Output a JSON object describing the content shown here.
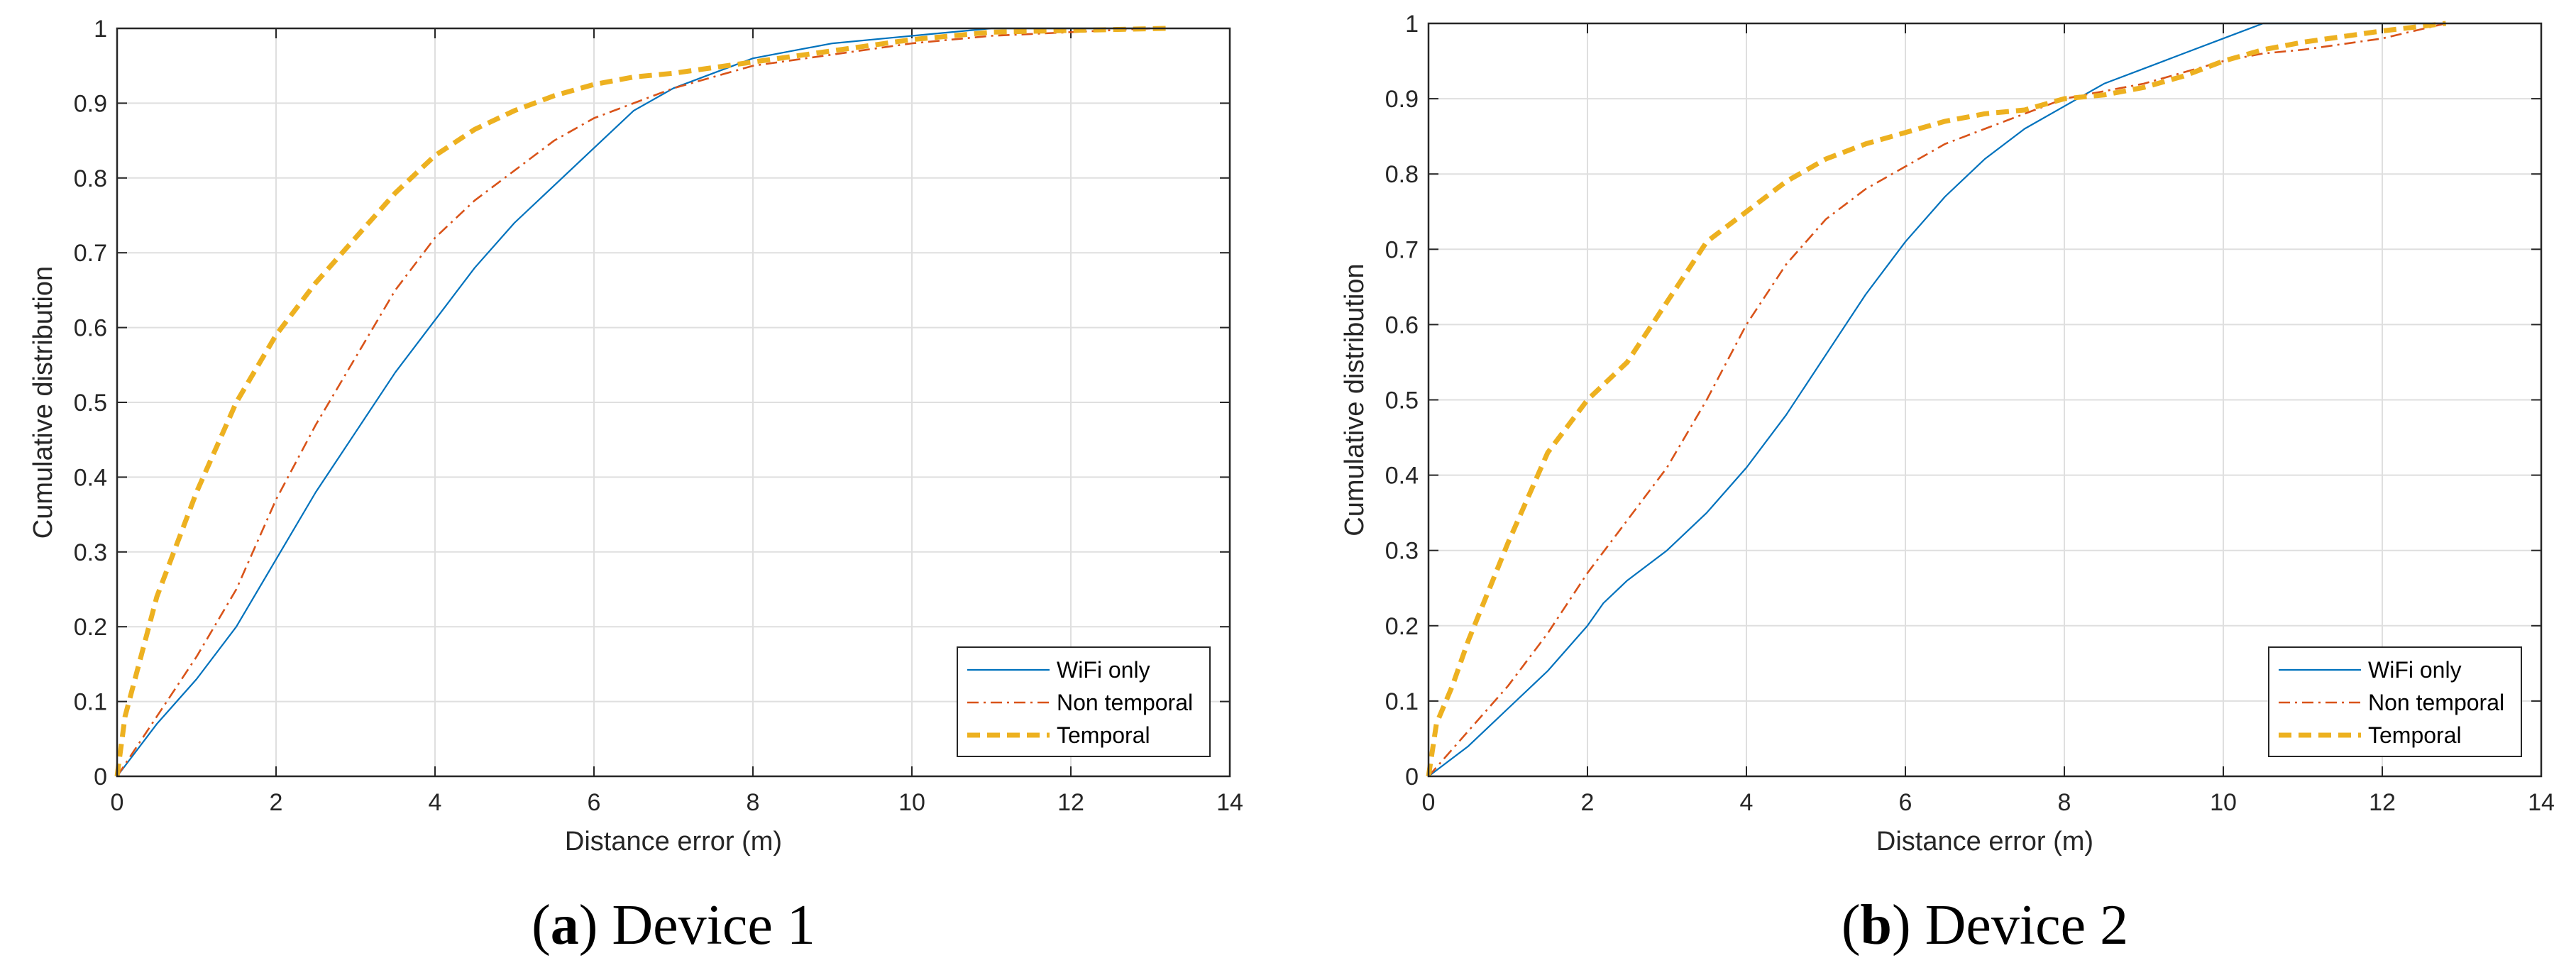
{
  "chart_data": [
    {
      "type": "line",
      "panel_letter": "a",
      "caption_text": " Device 1",
      "xlabel": "Distance error (m)",
      "ylabel": "Cumulative distribution",
      "xlim": [
        0,
        14
      ],
      "ylim": [
        0,
        1
      ],
      "x_ticks": [
        "0",
        "2",
        "4",
        "6",
        "8",
        "10",
        "12",
        "14"
      ],
      "y_ticks": [
        "0",
        "0.1",
        "0.2",
        "0.3",
        "0.4",
        "0.5",
        "0.6",
        "0.7",
        "0.8",
        "0.9",
        "1"
      ],
      "grid": true,
      "legend_position": "bottom-right",
      "series": [
        {
          "name": "WiFi only",
          "color": "#0072BD",
          "style": "solid",
          "points": [
            [
              0,
              0
            ],
            [
              0.5,
              0.07
            ],
            [
              1,
              0.13
            ],
            [
              1.5,
              0.2
            ],
            [
              2,
              0.29
            ],
            [
              2.5,
              0.38
            ],
            [
              3,
              0.46
            ],
            [
              3.5,
              0.54
            ],
            [
              4,
              0.61
            ],
            [
              4.5,
              0.68
            ],
            [
              5,
              0.74
            ],
            [
              5.5,
              0.79
            ],
            [
              6,
              0.84
            ],
            [
              6.5,
              0.89
            ],
            [
              7,
              0.92
            ],
            [
              7.5,
              0.94
            ],
            [
              8,
              0.96
            ],
            [
              8.5,
              0.97
            ],
            [
              9,
              0.98
            ],
            [
              10,
              0.99
            ],
            [
              11,
              1.0
            ],
            [
              13,
              1.0
            ]
          ]
        },
        {
          "name": "Non temporal",
          "color": "#D95319",
          "style": "dashdot",
          "points": [
            [
              0,
              0
            ],
            [
              0.5,
              0.08
            ],
            [
              1,
              0.16
            ],
            [
              1.5,
              0.25
            ],
            [
              2,
              0.37
            ],
            [
              2.5,
              0.47
            ],
            [
              3,
              0.56
            ],
            [
              3.5,
              0.65
            ],
            [
              4,
              0.72
            ],
            [
              4.5,
              0.77
            ],
            [
              5,
              0.81
            ],
            [
              5.5,
              0.85
            ],
            [
              6,
              0.88
            ],
            [
              6.5,
              0.9
            ],
            [
              7,
              0.92
            ],
            [
              7.5,
              0.935
            ],
            [
              8,
              0.95
            ],
            [
              9,
              0.965
            ],
            [
              10,
              0.98
            ],
            [
              11,
              0.99
            ],
            [
              12,
              0.995
            ],
            [
              13,
              1.0
            ]
          ]
        },
        {
          "name": "Temporal",
          "color": "#EDB120",
          "style": "dashed",
          "points": [
            [
              0,
              0
            ],
            [
              0.1,
              0.08
            ],
            [
              0.3,
              0.16
            ],
            [
              0.5,
              0.24
            ],
            [
              1,
              0.38
            ],
            [
              1.5,
              0.5
            ],
            [
              2,
              0.59
            ],
            [
              2.5,
              0.66
            ],
            [
              3,
              0.72
            ],
            [
              3.5,
              0.78
            ],
            [
              4,
              0.83
            ],
            [
              4.5,
              0.865
            ],
            [
              5,
              0.89
            ],
            [
              5.5,
              0.91
            ],
            [
              6,
              0.925
            ],
            [
              6.5,
              0.935
            ],
            [
              7,
              0.94
            ],
            [
              8,
              0.955
            ],
            [
              9,
              0.97
            ],
            [
              10,
              0.985
            ],
            [
              11,
              0.995
            ],
            [
              13.2,
              1.0
            ]
          ]
        }
      ]
    },
    {
      "type": "line",
      "panel_letter": "b",
      "caption_text": " Device 2",
      "xlabel": "Distance error (m)",
      "ylabel": "Cumulative distribution",
      "xlim": [
        0,
        14
      ],
      "ylim": [
        0,
        1
      ],
      "x_ticks": [
        "0",
        "2",
        "4",
        "6",
        "8",
        "10",
        "12",
        "14"
      ],
      "y_ticks": [
        "0",
        "0.1",
        "0.2",
        "0.3",
        "0.4",
        "0.5",
        "0.6",
        "0.7",
        "0.8",
        "0.9",
        "1"
      ],
      "grid": true,
      "legend_position": "bottom-right",
      "series": [
        {
          "name": "WiFi only",
          "color": "#0072BD",
          "style": "solid",
          "points": [
            [
              0,
              0
            ],
            [
              0.5,
              0.04
            ],
            [
              1,
              0.09
            ],
            [
              1.5,
              0.14
            ],
            [
              2,
              0.2
            ],
            [
              2.2,
              0.23
            ],
            [
              2.5,
              0.26
            ],
            [
              3,
              0.3
            ],
            [
              3.5,
              0.35
            ],
            [
              4,
              0.41
            ],
            [
              4.5,
              0.48
            ],
            [
              5,
              0.56
            ],
            [
              5.5,
              0.64
            ],
            [
              6,
              0.71
            ],
            [
              6.5,
              0.77
            ],
            [
              7,
              0.82
            ],
            [
              7.5,
              0.86
            ],
            [
              8,
              0.89
            ],
            [
              8.5,
              0.92
            ],
            [
              9,
              0.94
            ],
            [
              9.5,
              0.96
            ],
            [
              10,
              0.98
            ],
            [
              10.5,
              1.0
            ],
            [
              12.8,
              1.0
            ]
          ]
        },
        {
          "name": "Non temporal",
          "color": "#D95319",
          "style": "dashdot",
          "points": [
            [
              0,
              0
            ],
            [
              0.5,
              0.06
            ],
            [
              1,
              0.12
            ],
            [
              1.5,
              0.19
            ],
            [
              2,
              0.27
            ],
            [
              2.5,
              0.34
            ],
            [
              3,
              0.41
            ],
            [
              3.5,
              0.5
            ],
            [
              4,
              0.6
            ],
            [
              4.5,
              0.68
            ],
            [
              5,
              0.74
            ],
            [
              5.5,
              0.78
            ],
            [
              6,
              0.81
            ],
            [
              6.5,
              0.84
            ],
            [
              7,
              0.86
            ],
            [
              7.5,
              0.88
            ],
            [
              8,
              0.9
            ],
            [
              8.5,
              0.91
            ],
            [
              9,
              0.92
            ],
            [
              9.5,
              0.935
            ],
            [
              10,
              0.95
            ],
            [
              10.5,
              0.96
            ],
            [
              11,
              0.965
            ],
            [
              12,
              0.98
            ],
            [
              12.8,
              1.0
            ]
          ]
        },
        {
          "name": "Temporal",
          "color": "#EDB120",
          "style": "dashed",
          "points": [
            [
              0,
              0
            ],
            [
              0.1,
              0.07
            ],
            [
              0.3,
              0.12
            ],
            [
              0.5,
              0.18
            ],
            [
              1,
              0.31
            ],
            [
              1.5,
              0.43
            ],
            [
              2,
              0.5
            ],
            [
              2.5,
              0.55
            ],
            [
              3,
              0.63
            ],
            [
              3.5,
              0.71
            ],
            [
              4,
              0.75
            ],
            [
              4.5,
              0.79
            ],
            [
              5,
              0.82
            ],
            [
              5.5,
              0.84
            ],
            [
              6,
              0.855
            ],
            [
              6.5,
              0.87
            ],
            [
              7,
              0.88
            ],
            [
              7.5,
              0.885
            ],
            [
              8,
              0.9
            ],
            [
              8.5,
              0.905
            ],
            [
              9,
              0.915
            ],
            [
              9.5,
              0.93
            ],
            [
              10,
              0.95
            ],
            [
              10.5,
              0.965
            ],
            [
              11,
              0.975
            ],
            [
              12,
              0.99
            ],
            [
              12.8,
              1.0
            ]
          ]
        }
      ]
    }
  ]
}
